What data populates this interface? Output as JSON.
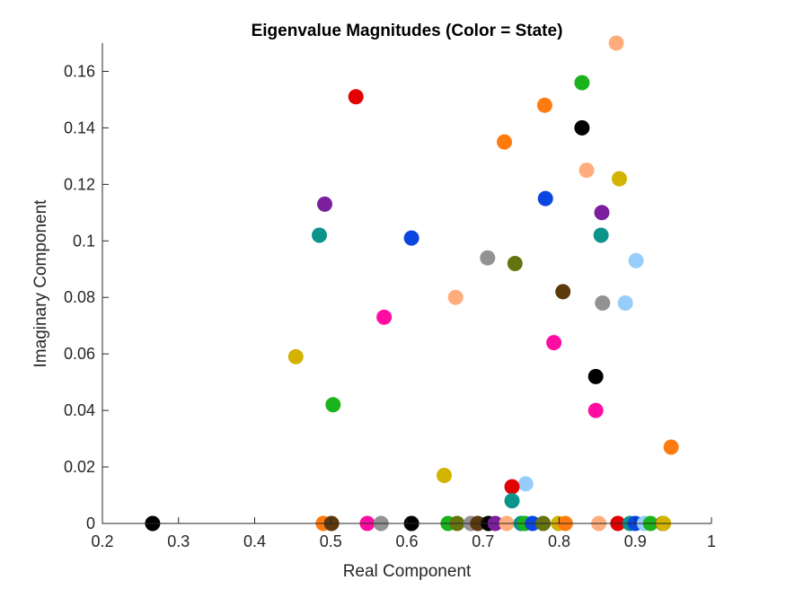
{
  "chart_data": {
    "type": "scatter",
    "title": "Eigenvalue Magnitudes (Color = State)",
    "xlabel": "Real Component",
    "ylabel": "Imaginary Component",
    "xlim": [
      0.2,
      1.0
    ],
    "ylim": [
      0,
      0.17
    ],
    "xticks": [
      "0.2",
      "0.3",
      "0.4",
      "0.5",
      "0.6",
      "0.7",
      "0.8",
      "0.9",
      "1"
    ],
    "xtick_values": [
      0.2,
      0.3,
      0.4,
      0.5,
      0.6,
      0.7,
      0.8,
      0.9,
      1.0
    ],
    "yticks": [
      "0",
      "0.02",
      "0.04",
      "0.06",
      "0.08",
      "0.1",
      "0.12",
      "0.14",
      "0.16"
    ],
    "ytick_values": [
      0,
      0.02,
      0.04,
      0.06,
      0.08,
      0.1,
      0.12,
      0.14,
      0.16
    ],
    "grid": false,
    "legend": "none",
    "points": [
      {
        "x": 0.875,
        "y": 0.17,
        "color": "#FFAD7D"
      },
      {
        "x": 0.533,
        "y": 0.151,
        "color": "#E30000"
      },
      {
        "x": 0.83,
        "y": 0.156,
        "color": "#1BB31B"
      },
      {
        "x": 0.781,
        "y": 0.148,
        "color": "#FF7B0F"
      },
      {
        "x": 0.83,
        "y": 0.14,
        "color": "#000000"
      },
      {
        "x": 0.728,
        "y": 0.135,
        "color": "#FF7B0F"
      },
      {
        "x": 0.836,
        "y": 0.125,
        "color": "#FFAD7D"
      },
      {
        "x": 0.879,
        "y": 0.122,
        "color": "#D1B300"
      },
      {
        "x": 0.782,
        "y": 0.115,
        "color": "#0A46E0"
      },
      {
        "x": 0.492,
        "y": 0.113,
        "color": "#7C1F9E"
      },
      {
        "x": 0.856,
        "y": 0.11,
        "color": "#7C1F9E"
      },
      {
        "x": 0.485,
        "y": 0.102,
        "color": "#0B948B"
      },
      {
        "x": 0.606,
        "y": 0.101,
        "color": "#0A46E0"
      },
      {
        "x": 0.855,
        "y": 0.102,
        "color": "#0B948B"
      },
      {
        "x": 0.706,
        "y": 0.094,
        "color": "#929292"
      },
      {
        "x": 0.742,
        "y": 0.092,
        "color": "#667311"
      },
      {
        "x": 0.901,
        "y": 0.093,
        "color": "#96CDFA"
      },
      {
        "x": 0.805,
        "y": 0.082,
        "color": "#5C3A0E"
      },
      {
        "x": 0.664,
        "y": 0.08,
        "color": "#FFAD7D"
      },
      {
        "x": 0.857,
        "y": 0.078,
        "color": "#929292"
      },
      {
        "x": 0.887,
        "y": 0.078,
        "color": "#96CDFA"
      },
      {
        "x": 0.57,
        "y": 0.073,
        "color": "#FF0DA2"
      },
      {
        "x": 0.793,
        "y": 0.064,
        "color": "#FF0DA2"
      },
      {
        "x": 0.454,
        "y": 0.059,
        "color": "#D1B300"
      },
      {
        "x": 0.848,
        "y": 0.052,
        "color": "#000000"
      },
      {
        "x": 0.503,
        "y": 0.042,
        "color": "#1BB31B"
      },
      {
        "x": 0.848,
        "y": 0.04,
        "color": "#FF0DA2"
      },
      {
        "x": 0.947,
        "y": 0.027,
        "color": "#FF7B0F"
      },
      {
        "x": 0.649,
        "y": 0.017,
        "color": "#D1B300"
      },
      {
        "x": 0.756,
        "y": 0.014,
        "color": "#96CDFA"
      },
      {
        "x": 0.738,
        "y": 0.013,
        "color": "#E30000"
      },
      {
        "x": 0.738,
        "y": 0.008,
        "color": "#0B948B"
      },
      {
        "x": 0.266,
        "y": 0.0,
        "color": "#000000"
      },
      {
        "x": 0.49,
        "y": 0.0,
        "color": "#FF7B0F"
      },
      {
        "x": 0.501,
        "y": 0.0,
        "color": "#5C3A0E"
      },
      {
        "x": 0.548,
        "y": 0.0,
        "color": "#FF0DA2"
      },
      {
        "x": 0.566,
        "y": 0.0,
        "color": "#929292"
      },
      {
        "x": 0.606,
        "y": 0.0,
        "color": "#000000"
      },
      {
        "x": 0.654,
        "y": 0.0,
        "color": "#1BB31B"
      },
      {
        "x": 0.666,
        "y": 0.0,
        "color": "#667311"
      },
      {
        "x": 0.684,
        "y": 0.0,
        "color": "#929292"
      },
      {
        "x": 0.693,
        "y": 0.0,
        "color": "#5C3A0E"
      },
      {
        "x": 0.707,
        "y": 0.0,
        "color": "#000000"
      },
      {
        "x": 0.716,
        "y": 0.0,
        "color": "#7C1F9E"
      },
      {
        "x": 0.731,
        "y": 0.0,
        "color": "#FFAD7D"
      },
      {
        "x": 0.75,
        "y": 0.0,
        "color": "#0B948B"
      },
      {
        "x": 0.755,
        "y": 0.0,
        "color": "#1BB31B"
      },
      {
        "x": 0.765,
        "y": 0.0,
        "color": "#0A46E0"
      },
      {
        "x": 0.779,
        "y": 0.0,
        "color": "#667311"
      },
      {
        "x": 0.799,
        "y": 0.0,
        "color": "#D1B300"
      },
      {
        "x": 0.808,
        "y": 0.0,
        "color": "#FF7B0F"
      },
      {
        "x": 0.852,
        "y": 0.0,
        "color": "#FFAD7D"
      },
      {
        "x": 0.877,
        "y": 0.0,
        "color": "#E30000"
      },
      {
        "x": 0.893,
        "y": 0.0,
        "color": "#0B948B"
      },
      {
        "x": 0.9,
        "y": 0.0,
        "color": "#0A46E0"
      },
      {
        "x": 0.912,
        "y": 0.0,
        "color": "#96CDFA"
      },
      {
        "x": 0.92,
        "y": 0.0,
        "color": "#1BB31B"
      },
      {
        "x": 0.936,
        "y": 0.0,
        "color": "#667311"
      },
      {
        "x": 0.937,
        "y": 0.0,
        "color": "#D1B300"
      }
    ]
  }
}
